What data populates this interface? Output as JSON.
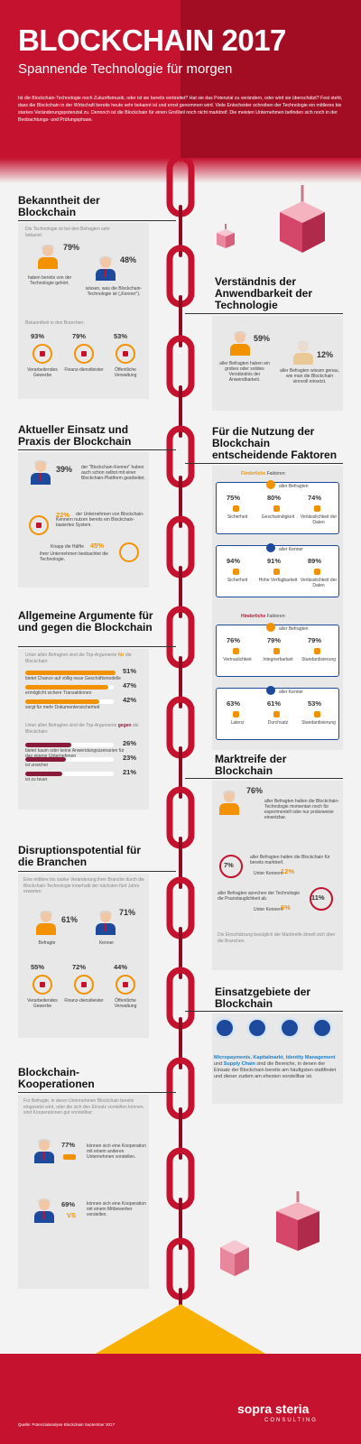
{
  "header": {
    "title": "BLOCKCHAIN 2017",
    "subtitle": "Spannende Technologie für morgen",
    "intro": "Ist die Blockchain-Technologie noch Zukunftsmusik, oder ist sie bereits verbreitet? Hat sie das Potenzial zu verändern, oder wird sie überschätzt? Fest steht, dass die Blockchain in der Wirtschaft bereits heute sehr bekannt ist und ernst genommen wird. Viele Entscheider schreiben der Technologie ein mittleres bis starkes Veränderungspotenzial zu. Dennoch ist die Blockchain für einen Großteil noch nicht marktreif. Die meisten Unternehmen befinden sich noch in der Beobachtungs- und Prüfungsphase."
  },
  "bekanntheit": {
    "title": "Bekanntheit der Blockchain",
    "intro": "Die Technologie ist bei den Befragten sehr bekannt:",
    "left_pct": "79%",
    "left_label": "haben bereits von der Technologie gehört.",
    "right_pct": "48%",
    "right_label": "wissen, was die Blockchain-Technologie ist („Kenner\").",
    "branchen_intro": "Bekanntheit in den Branchen:",
    "branchen": [
      {
        "pct": "93%",
        "label": "Verarbeitendes Gewerbe"
      },
      {
        "pct": "79%",
        "label": "Finanz-dienstleister"
      },
      {
        "pct": "53%",
        "label": "Öffentliche Verwaltung"
      }
    ]
  },
  "verstaendnis": {
    "title": "Verständnis der Anwendbarkeit der Technologie",
    "left_pct": "59%",
    "left_label": "aller Befragten haben ein grobes oder solides Verständnis der Anwendbarkeit.",
    "right_pct": "12%",
    "right_label": "aller Befragten wissen genau, wie man die Blockchain sinnvoll einsetzt."
  },
  "einsatz": {
    "title": "Aktueller Einsatz und Praxis der Blockchain",
    "pct1": "39%",
    "text1": "der \"Blockchain-Kenner\" haben auch schon selbst mit einer Blockchain-Plattform gearbeitet.",
    "pct2": "22%",
    "text2": "der Unternehmen von Blockchain-Kennern nutzen bereits ein Blockchain-basiertes System.",
    "pct3": "45%",
    "text3a": "Knapp die Hälfte",
    "text3b": "ihrer Unternehmen beobachtet die Technologie."
  },
  "faktoren": {
    "title": "Für die Nutzung der Blockchain entscheidende Faktoren",
    "foerderlich_label": "Förderliche",
    "hinderlich_label": "Hinderliche",
    "faktoren_suffix": "Faktoren:",
    "alle_befragten": "aller Befragten",
    "alle_kenner": "aller Kenner",
    "foerderlich_befragte": [
      {
        "pct": "75%",
        "label": "Sicherheit"
      },
      {
        "pct": "80%",
        "label": "Geschwindigkeit"
      },
      {
        "pct": "74%",
        "label": "Verlässlichkeit der Daten"
      }
    ],
    "foerderlich_kenner": [
      {
        "pct": "94%",
        "label": "Sicherheit"
      },
      {
        "pct": "91%",
        "label": "Hohe Verfügbarkeit"
      },
      {
        "pct": "89%",
        "label": "Verlässlichkeit der Daten"
      }
    ],
    "hinderlich_befragte": [
      {
        "pct": "76%",
        "label": "Vertraulichkeit"
      },
      {
        "pct": "79%",
        "label": "Integrierbarkeit"
      },
      {
        "pct": "79%",
        "label": "Standardisierung"
      }
    ],
    "hinderlich_kenner": [
      {
        "pct": "63%",
        "label": "Latenz"
      },
      {
        "pct": "61%",
        "label": "Durchsatz"
      },
      {
        "pct": "53%",
        "label": "Standardisierung"
      }
    ]
  },
  "argumente": {
    "title": "Allgemeine Argumente für und gegen die Blockchain",
    "fuer_intro_a": "Unter allen Befragten sind die Top-Argumente",
    "fuer_word": "für",
    "fuer_intro_b": "die Blockchain:",
    "fuer": [
      {
        "pct": "51%",
        "value": 0.51,
        "label": "bietet Chance auf völlig neue Geschäftsmodelle"
      },
      {
        "pct": "47%",
        "value": 0.47,
        "label": "ermöglicht sichere Transaktionen"
      },
      {
        "pct": "42%",
        "value": 0.42,
        "label": "sorgt für mehr Dokumentensicherheit"
      }
    ],
    "gegen_intro_a": "Unter allen Befragten sind die Top-Argumente",
    "gegen_word": "gegen",
    "gegen_intro_b": "die Blockchain:",
    "gegen": [
      {
        "pct": "26%",
        "value": 0.26,
        "label": "bietet kaum oder keine Anwendungsszenarien für das eigene Unternehmen"
      },
      {
        "pct": "23%",
        "value": 0.23,
        "label": "ist unsicher"
      },
      {
        "pct": "21%",
        "value": 0.21,
        "label": "ist zu teuer"
      }
    ],
    "colors": {
      "fuer": "#f39200",
      "gegen": "#8b1a3a"
    }
  },
  "marktreife": {
    "title": "Marktreife der Blockchain",
    "pct1": "76%",
    "text1": "aller Befragten halten die Blockchain-Technologie momentan noch für experimentell oder nur probeweise einsetzbar.",
    "pct2": "7%",
    "text2": "aller Befragten halten die Blockchain für bereits marktreif.",
    "kenner_label": "Unter Kennern",
    "pct2b": "12%",
    "pct3": "11%",
    "text3": "aller Befragten sprechen der Technologie die Praxistauglichkeit ab.",
    "pct3b": "6%",
    "note": "Die Einschätzung bezüglich der Marktreife ähnelt sich über die Branchen."
  },
  "disruption": {
    "title": "Disruptionspotential für die Branchen",
    "intro": "Eine mittlere bis starke Veränderung ihrer Branche durch die Blockchain-Technologie innerhalb der nächsten fünf Jahre erwarten:",
    "left_pct": "61%",
    "left_label": "Befragte",
    "right_pct": "71%",
    "right_label": "Kenner",
    "branchen": [
      {
        "pct": "55%",
        "label": "Verarbeitendes Gewerbe"
      },
      {
        "pct": "72%",
        "label": "Finanz-dienstleister"
      },
      {
        "pct": "44%",
        "label": "Öffentliche Verwaltung"
      }
    ]
  },
  "einsatzgebiete": {
    "title": "Einsatzgebiete der Blockchain",
    "highlight1": "Micropayments",
    "highlight2": "Kapitalmarkt",
    "highlight3": "Identity Management",
    "und": "und",
    "highlight4": "Supply Chain",
    "text": "sind die Bereiche, in denen der Einsatz der Blockchain bereits am häufigsten stattfindet und dieser zudem am ehesten vorstellbar ist."
  },
  "kooperationen": {
    "title": "Blockchain-Kooperationen",
    "intro": "Für Befragte, in deren Unternehmen Blockchain bereits eingesetzt wird, oder die sich den Einsatz vorstellen können, sind Kooperationen gut vorstellbar:",
    "pct1": "77%",
    "text1": "können sich eine Kooperation mit einem anderen Unternehmen vorstellen.",
    "pct2": "69%",
    "vs": "VS",
    "text2": "können sich eine Kooperation mit einem Mitbewerber vorstellen."
  },
  "footer": {
    "logo": "sopra steria",
    "logo_sub": "CONSULTING",
    "source": "Quelle: Potenzialanalyse Blockchain September 2017"
  },
  "colors": {
    "red": "#c4122f",
    "orange": "#f39200",
    "blue": "#1d4a9c",
    "pink": "#f0a0b0"
  }
}
